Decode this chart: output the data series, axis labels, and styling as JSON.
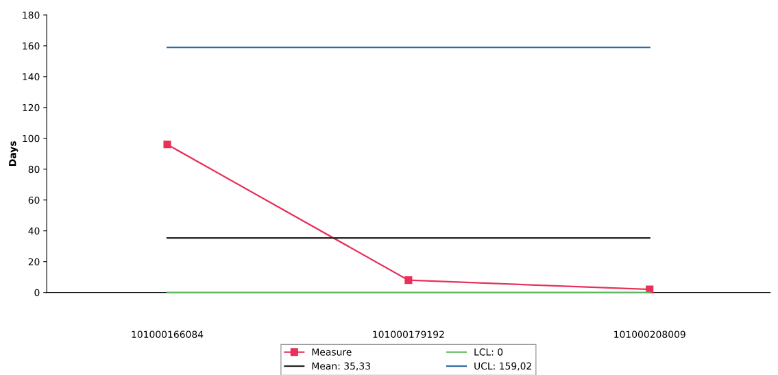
{
  "chart_data": {
    "type": "line",
    "ylabel": "Days",
    "categories": [
      "101000166084",
      "101000179192",
      "101000208009"
    ],
    "series": [
      {
        "name": "Measure",
        "color": "#e8305a",
        "values": [
          96,
          8,
          2
        ],
        "marker": "square"
      },
      {
        "name": "Mean: 35,33",
        "color": "#222222",
        "values": [
          35.33,
          35.33,
          35.33
        ]
      },
      {
        "name": "LCL: 0",
        "color": "#5cb85c",
        "values": [
          0,
          0,
          0
        ]
      },
      {
        "name": "UCL: 159,02",
        "color": "#2e6da4",
        "values": [
          159.02,
          159.02,
          159.02
        ]
      }
    ],
    "ylim": [
      0,
      180
    ],
    "yticks": [
      0,
      20,
      40,
      60,
      80,
      100,
      120,
      140,
      160,
      180
    ],
    "grid": false,
    "legend": "bottom"
  }
}
